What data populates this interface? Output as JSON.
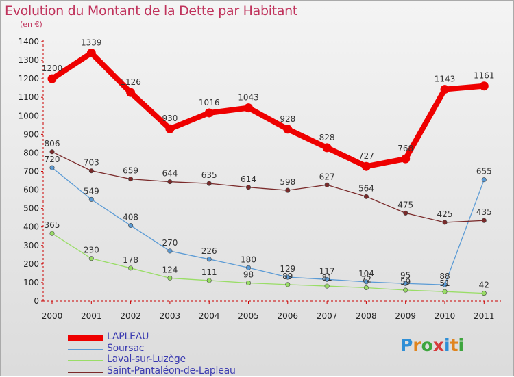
{
  "header": {
    "title": "Evolution du Montant de la Dette par Habitant",
    "unit": "(en €)"
  },
  "colors": {
    "title": "#c0335c",
    "axis": "#cc0000",
    "legend_text": "#3a3ab0"
  },
  "logo": {
    "letters": [
      "P",
      "r",
      "o",
      "x",
      "i",
      "t",
      "i"
    ],
    "colors": [
      "#2f8fd6",
      "#e0841e",
      "#3da53d",
      "#d63a3a",
      "#2f8fd6",
      "#e0841e",
      "#3da53d"
    ]
  },
  "chart_data": {
    "type": "line",
    "title": "Evolution du Montant de la Dette par Habitant",
    "ylabel": "(en €)",
    "xlabel": "",
    "ylim": [
      0,
      1400
    ],
    "yticks": [
      0,
      100,
      200,
      300,
      400,
      500,
      600,
      700,
      800,
      900,
      1000,
      1100,
      1200,
      1300,
      1400
    ],
    "grid": false,
    "legend_position": "bottom-left",
    "categories": [
      "2000",
      "2001",
      "2002",
      "2003",
      "2004",
      "2005",
      "2006",
      "2007",
      "2008",
      "2009",
      "2010",
      "2011"
    ],
    "series": [
      {
        "name": "LAPLEAU",
        "color": "#ee0000",
        "values": [
          1200,
          1339,
          1126,
          930,
          1016,
          1043,
          928,
          828,
          727,
          768,
          1143,
          1161
        ],
        "labels": [
          "1200",
          "1339",
          "1126",
          "930",
          "1016",
          "1043",
          "928",
          "828",
          "727",
          "768",
          "1143",
          "1161"
        ]
      },
      {
        "name": "Soursac",
        "color": "#5b9bd5",
        "values": [
          720,
          549,
          408,
          270,
          226,
          180,
          129,
          117,
          104,
          95,
          88,
          655
        ],
        "labels": [
          "720",
          "549",
          "408",
          "270",
          "226",
          "180",
          "129",
          "117",
          "104",
          "95",
          "88",
          "655"
        ]
      },
      {
        "name": "Laval-sur-Luzège",
        "color": "#99dd66",
        "values": [
          365,
          230,
          178,
          124,
          111,
          98,
          89,
          81,
          72,
          59,
          51,
          42
        ],
        "labels": [
          "365",
          "230",
          "178",
          "124",
          "111",
          "98",
          "89",
          "81",
          "72",
          "59",
          "51",
          "42"
        ]
      },
      {
        "name": "Saint-Pantaléon-de-Lapleau",
        "color": "#7a2a2a",
        "values": [
          806,
          703,
          659,
          644,
          635,
          614,
          598,
          627,
          564,
          475,
          425,
          435
        ],
        "labels": [
          "806",
          "703",
          "659",
          "644",
          "635",
          "614",
          "598",
          "627",
          "564",
          "475",
          "425",
          "435"
        ]
      }
    ]
  }
}
